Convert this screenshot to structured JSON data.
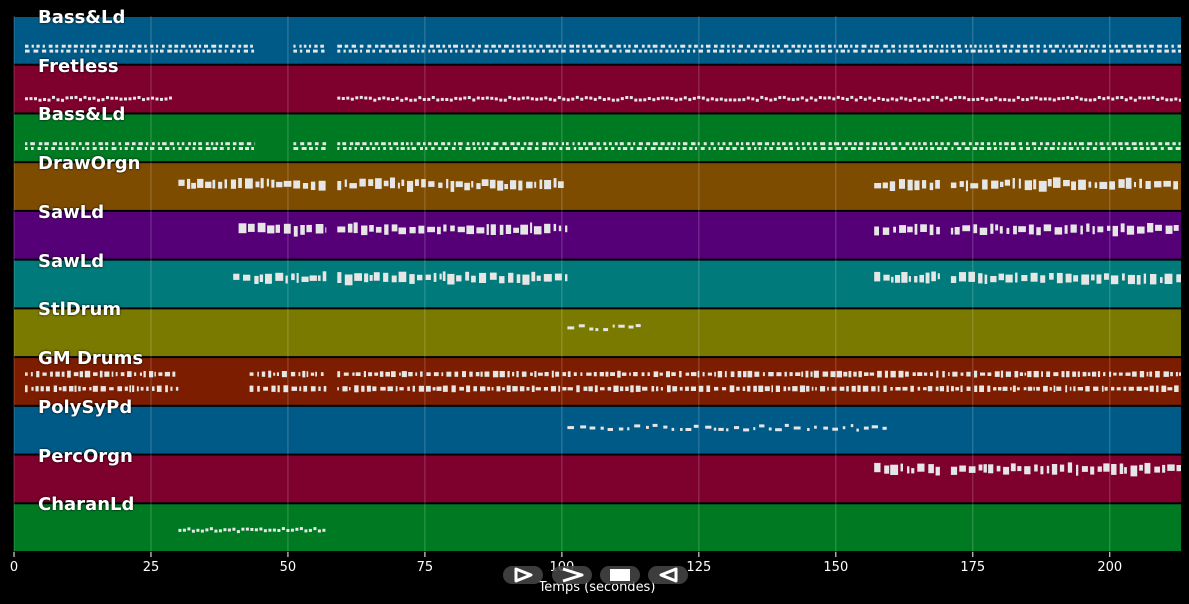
{
  "colors": {
    "background": "#000000",
    "track_colors": [
      "#005a87",
      "#7d002d",
      "#007a22",
      "#7d4c00",
      "#560078",
      "#007a7a",
      "#7a7a00",
      "#7d1d00"
    ],
    "notes": "#e6e6e6"
  },
  "tracks": [
    {
      "label": "Bass&Ld",
      "regions": [
        [
          2,
          44
        ],
        [
          51,
          57
        ],
        [
          59,
          213
        ]
      ],
      "rows": [
        0.62,
        0.72
      ],
      "pattern": "dashed"
    },
    {
      "label": "Fretless",
      "regions": [
        [
          2,
          29
        ],
        [
          59,
          213
        ]
      ],
      "rows": [
        0.7
      ],
      "pattern": "dotted"
    },
    {
      "label": "Bass&Ld",
      "regions": [
        [
          2,
          44
        ],
        [
          51,
          57
        ],
        [
          59,
          213
        ]
      ],
      "rows": [
        0.62,
        0.72
      ],
      "pattern": "dashed"
    },
    {
      "label": "DrawOrgn",
      "regions": [
        [
          30,
          57
        ],
        [
          59,
          101
        ],
        [
          157,
          169
        ],
        [
          171,
          213
        ]
      ],
      "rows": [
        0.46
      ],
      "pattern": "blocks"
    },
    {
      "label": "SawLd",
      "regions": [
        [
          41,
          57
        ],
        [
          59,
          101
        ],
        [
          157,
          169
        ],
        [
          171,
          213
        ]
      ],
      "rows": [
        0.38
      ],
      "pattern": "blocks"
    },
    {
      "label": "SawLd",
      "regions": [
        [
          40,
          57
        ],
        [
          59,
          101
        ],
        [
          157,
          169
        ],
        [
          171,
          213
        ]
      ],
      "rows": [
        0.38
      ],
      "pattern": "blocks"
    },
    {
      "label": "StlDrum",
      "regions": [
        [
          101,
          115
        ]
      ],
      "rows": [
        0.4
      ],
      "pattern": "sparse"
    },
    {
      "label": "GM Drums",
      "regions": [
        [
          2,
          30
        ],
        [
          43,
          57
        ],
        [
          59,
          213
        ]
      ],
      "rows": [
        0.35,
        0.65
      ],
      "pattern": "drums"
    },
    {
      "label": "PolySyPd",
      "regions": [
        [
          101,
          160
        ]
      ],
      "rows": [
        0.45
      ],
      "pattern": "sparse"
    },
    {
      "label": "PercOrgn",
      "regions": [
        [
          157,
          169
        ],
        [
          171,
          213
        ]
      ],
      "rows": [
        0.3
      ],
      "pattern": "blocks"
    },
    {
      "label": "CharanLd",
      "regions": [
        [
          30,
          57
        ]
      ],
      "rows": [
        0.55
      ],
      "pattern": "dotted"
    }
  ],
  "axis": {
    "xmin": 0,
    "xmax": 213,
    "ticks": [
      0,
      25,
      50,
      75,
      100,
      125,
      150,
      175,
      200
    ],
    "tick_labels": [
      "0",
      "25",
      "50",
      "75",
      "100",
      "125",
      "150",
      "175",
      "200"
    ],
    "xlabel": "Temps (secondes)"
  },
  "controls": [
    {
      "name": "play-icon"
    },
    {
      "name": "forward-icon"
    },
    {
      "name": "stop-icon"
    },
    {
      "name": "rewind-icon"
    }
  ]
}
